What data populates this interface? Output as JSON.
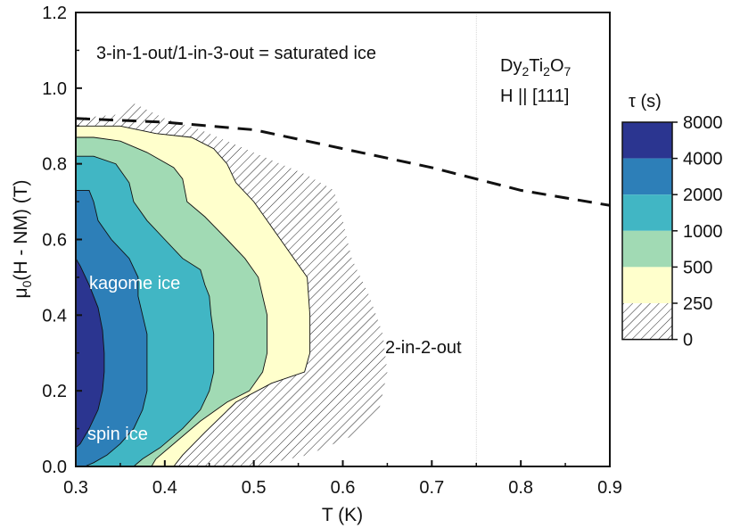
{
  "chart_data": {
    "type": "contour",
    "xlabel": "T (K)",
    "ylabel_main": "μ",
    "ylabel_sub": "0",
    "ylabel_rest": "(H - NM) (T)",
    "xlim": [
      0.3,
      0.9
    ],
    "ylim": [
      0.0,
      1.2
    ],
    "x_ticks": [
      "0.3",
      "0.4",
      "0.5",
      "0.6",
      "0.7",
      "0.8",
      "0.9"
    ],
    "y_ticks": [
      "0.0",
      "0.2",
      "0.4",
      "0.6",
      "0.8",
      "1.0",
      "1.2"
    ],
    "colorbar": {
      "title": "τ (s)",
      "levels": [
        "8000",
        "4000",
        "2000",
        "1000",
        "500",
        "250",
        "0"
      ],
      "colors": [
        "#2b3590",
        "#2d7fb8",
        "#41b6c4",
        "#a1dab4",
        "#ffffcc",
        "hatched"
      ]
    },
    "annotations": {
      "saturated": "3-in-1-out/1-in-3-out = saturated ice",
      "kagome": "kagome ice",
      "spin": "spin ice",
      "two_in": "2-in-2-out",
      "material_dy": "Dy",
      "material_sub1": "2",
      "material_ti": "Ti",
      "material_sub2": "2",
      "material_o": "O",
      "material_sub3": "7",
      "field_dir": "H || [111]"
    },
    "contours": [
      {
        "level": "0",
        "fill": "hatch",
        "points": [
          [
            0.3,
            0.92
          ],
          [
            0.345,
            0.93
          ],
          [
            0.365,
            0.96
          ],
          [
            0.4,
            0.92
          ],
          [
            0.44,
            0.89
          ],
          [
            0.49,
            0.84
          ],
          [
            0.53,
            0.8
          ],
          [
            0.56,
            0.77
          ],
          [
            0.59,
            0.73
          ],
          [
            0.6,
            0.65
          ],
          [
            0.61,
            0.55
          ],
          [
            0.63,
            0.45
          ],
          [
            0.645,
            0.35
          ],
          [
            0.65,
            0.25
          ],
          [
            0.64,
            0.14
          ],
          [
            0.61,
            0.08
          ],
          [
            0.56,
            0.03
          ],
          [
            0.5,
            0.0
          ],
          [
            0.3,
            0.0
          ]
        ]
      },
      {
        "level": "250",
        "fill": "#ffffcc",
        "points": [
          [
            0.3,
            0.9
          ],
          [
            0.35,
            0.9
          ],
          [
            0.39,
            0.88
          ],
          [
            0.43,
            0.87
          ],
          [
            0.455,
            0.84
          ],
          [
            0.47,
            0.8
          ],
          [
            0.48,
            0.75
          ],
          [
            0.5,
            0.7
          ],
          [
            0.515,
            0.65
          ],
          [
            0.53,
            0.6
          ],
          [
            0.545,
            0.55
          ],
          [
            0.56,
            0.5
          ],
          [
            0.563,
            0.4
          ],
          [
            0.563,
            0.3
          ],
          [
            0.557,
            0.25
          ],
          [
            0.52,
            0.22
          ],
          [
            0.48,
            0.17
          ],
          [
            0.445,
            0.09
          ],
          [
            0.42,
            0.03
          ],
          [
            0.41,
            0.0
          ],
          [
            0.3,
            0.0
          ]
        ]
      },
      {
        "level": "500",
        "fill": "#a1dab4",
        "points": [
          [
            0.3,
            0.87
          ],
          [
            0.32,
            0.87
          ],
          [
            0.35,
            0.86
          ],
          [
            0.38,
            0.83
          ],
          [
            0.41,
            0.79
          ],
          [
            0.42,
            0.76
          ],
          [
            0.425,
            0.7
          ],
          [
            0.445,
            0.66
          ],
          [
            0.47,
            0.6
          ],
          [
            0.49,
            0.55
          ],
          [
            0.505,
            0.5
          ],
          [
            0.51,
            0.45
          ],
          [
            0.515,
            0.4
          ],
          [
            0.515,
            0.35
          ],
          [
            0.515,
            0.3
          ],
          [
            0.51,
            0.25
          ],
          [
            0.495,
            0.2
          ],
          [
            0.47,
            0.17
          ],
          [
            0.44,
            0.12
          ],
          [
            0.41,
            0.06
          ],
          [
            0.39,
            0.02
          ],
          [
            0.385,
            0.0
          ],
          [
            0.3,
            0.0
          ]
        ]
      },
      {
        "level": "1000",
        "fill": "#41b6c4",
        "points": [
          [
            0.3,
            0.82
          ],
          [
            0.32,
            0.82
          ],
          [
            0.345,
            0.8
          ],
          [
            0.36,
            0.75
          ],
          [
            0.365,
            0.7
          ],
          [
            0.38,
            0.65
          ],
          [
            0.4,
            0.6
          ],
          [
            0.42,
            0.55
          ],
          [
            0.44,
            0.52
          ],
          [
            0.445,
            0.48
          ],
          [
            0.45,
            0.45
          ],
          [
            0.452,
            0.4
          ],
          [
            0.455,
            0.35
          ],
          [
            0.455,
            0.3
          ],
          [
            0.455,
            0.25
          ],
          [
            0.45,
            0.2
          ],
          [
            0.44,
            0.15
          ],
          [
            0.42,
            0.1
          ],
          [
            0.395,
            0.05
          ],
          [
            0.375,
            0.02
          ],
          [
            0.365,
            0.0
          ],
          [
            0.3,
            0.0
          ]
        ]
      },
      {
        "level": "2000",
        "fill": "#2d7fb8",
        "points": [
          [
            0.3,
            0.73
          ],
          [
            0.315,
            0.73
          ],
          [
            0.32,
            0.7
          ],
          [
            0.325,
            0.65
          ],
          [
            0.34,
            0.6
          ],
          [
            0.36,
            0.55
          ],
          [
            0.37,
            0.5
          ],
          [
            0.37,
            0.45
          ],
          [
            0.375,
            0.4
          ],
          [
            0.38,
            0.35
          ],
          [
            0.38,
            0.3
          ],
          [
            0.38,
            0.25
          ],
          [
            0.38,
            0.2
          ],
          [
            0.375,
            0.15
          ],
          [
            0.365,
            0.1
          ],
          [
            0.35,
            0.06
          ],
          [
            0.335,
            0.03
          ],
          [
            0.32,
            0.01
          ],
          [
            0.31,
            0.0
          ],
          [
            0.3,
            0.0
          ]
        ]
      },
      {
        "level": "4000",
        "fill": "#2b3590",
        "points": [
          [
            0.3,
            0.55
          ],
          [
            0.305,
            0.53
          ],
          [
            0.315,
            0.48
          ],
          [
            0.325,
            0.42
          ],
          [
            0.33,
            0.36
          ],
          [
            0.332,
            0.3
          ],
          [
            0.332,
            0.25
          ],
          [
            0.33,
            0.2
          ],
          [
            0.325,
            0.15
          ],
          [
            0.315,
            0.1
          ],
          [
            0.305,
            0.06
          ],
          [
            0.3,
            0.05
          ]
        ]
      }
    ],
    "saturation_line": [
      [
        0.3,
        0.92
      ],
      [
        0.4,
        0.91
      ],
      [
        0.5,
        0.89
      ],
      [
        0.6,
        0.84
      ],
      [
        0.7,
        0.79
      ],
      [
        0.8,
        0.73
      ],
      [
        0.9,
        0.69
      ]
    ],
    "vertical_guide_x": 0.75
  }
}
